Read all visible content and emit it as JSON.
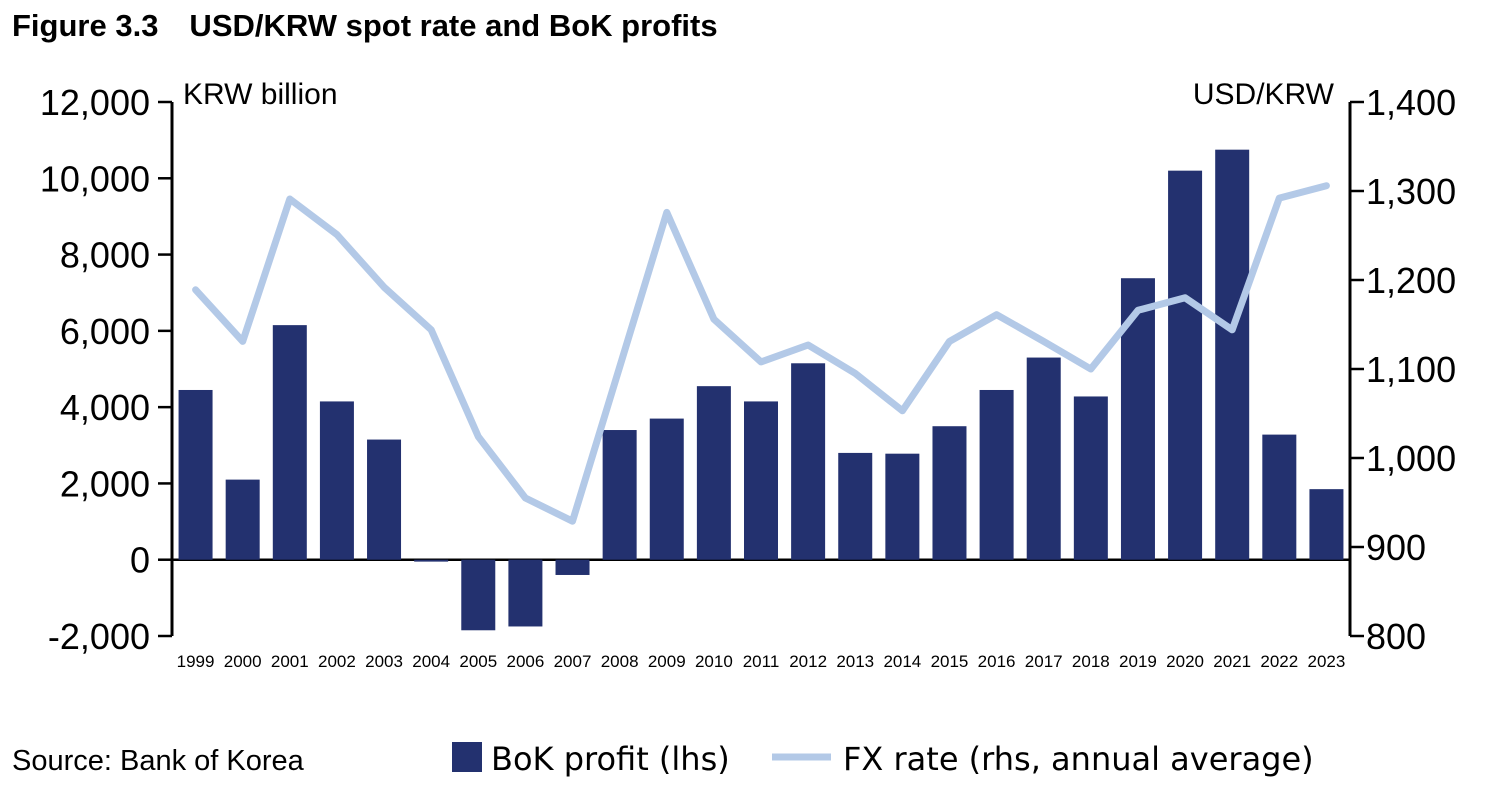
{
  "chart_data": {
    "type": "bar",
    "title": "Figure 3.3 USD/KRW spot rate and BoK profits",
    "left_axis_label": "KRW billion",
    "right_axis_label": "USD/KRW",
    "categories": [
      "1999",
      "2000",
      "2001",
      "2002",
      "2003",
      "2004",
      "2005",
      "2006",
      "2007",
      "2008",
      "2009",
      "2010",
      "2011",
      "2012",
      "2013",
      "2014",
      "2015",
      "2016",
      "2017",
      "2018",
      "2019",
      "2020",
      "2021",
      "2022",
      "2023"
    ],
    "ylim_left": [
      -2000,
      12000
    ],
    "yticks_left": [
      "-2,000",
      "0",
      "2,000",
      "4,000",
      "6,000",
      "8,000",
      "10,000",
      "12,000"
    ],
    "ylim_right": [
      800,
      1400
    ],
    "yticks_right": [
      "800",
      "900",
      "1,000",
      "1,100",
      "1,200",
      "1,300",
      "1,400"
    ],
    "series": [
      {
        "name": "BoK profit (lhs)",
        "type": "bar",
        "axis": "left",
        "color": "#23316f",
        "values": [
          4450,
          2100,
          6150,
          4150,
          3150,
          -50,
          -1850,
          -1750,
          -400,
          3400,
          3700,
          4550,
          4150,
          5150,
          2800,
          2780,
          3500,
          4450,
          5300,
          4280,
          7380,
          10200,
          10750,
          3280,
          1850
        ]
      },
      {
        "name": "FX rate (rhs, annual average)",
        "type": "line",
        "axis": "right",
        "color": "#b3c9e7",
        "values": [
          1189,
          1131,
          1291,
          1251,
          1192,
          1144,
          1024,
          955,
          929,
          1102,
          1276,
          1156,
          1108,
          1127,
          1095,
          1053,
          1131,
          1161,
          1131,
          1100,
          1166,
          1180,
          1144,
          1292,
          1306
        ]
      }
    ],
    "source": "Source: Bank of Korea"
  }
}
